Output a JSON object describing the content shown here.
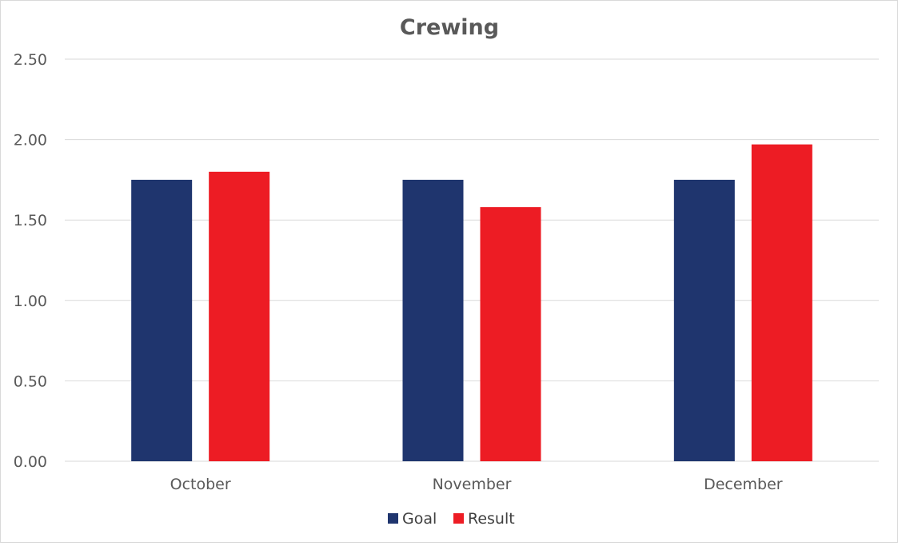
{
  "chart_data": {
    "type": "bar",
    "title": "Crewing",
    "xlabel": "",
    "ylabel": "",
    "categories": [
      "October",
      "November",
      "December"
    ],
    "series": [
      {
        "name": "Goal",
        "values": [
          1.75,
          1.75,
          1.75
        ],
        "color": "#1f356e"
      },
      {
        "name": "Result",
        "values": [
          1.8,
          1.58,
          1.97
        ],
        "color": "#ed1c24"
      }
    ],
    "ylim": [
      0,
      2.5
    ],
    "yticks": [
      "0.00",
      "0.50",
      "1.00",
      "1.50",
      "2.00",
      "2.50"
    ],
    "grid": true,
    "legend": "bottom-center",
    "gridline_color": "#d9d9d9"
  }
}
